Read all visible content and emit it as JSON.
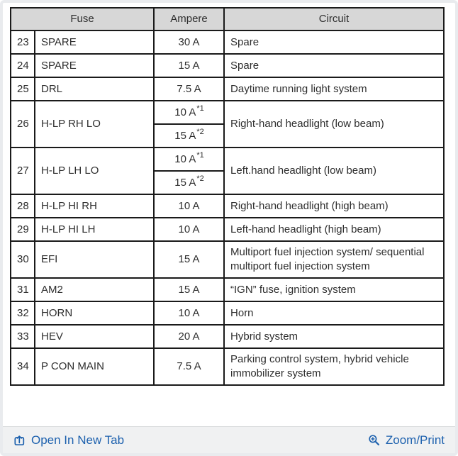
{
  "colors": {
    "link_blue": "#1d61ae",
    "header_bg": "#d7d7d7",
    "table_border": "#1a1a1a",
    "footer_bg": "#f0f1f2"
  },
  "table": {
    "headers": {
      "fuse": "Fuse",
      "ampere": "Ampere",
      "circuit": "Circuit"
    },
    "rows": [
      {
        "num": "23",
        "fuse": "SPARE",
        "ampere": [
          {
            "text": "30 A",
            "sup": ""
          }
        ],
        "circuit": "Spare"
      },
      {
        "num": "24",
        "fuse": "SPARE",
        "ampere": [
          {
            "text": "15 A",
            "sup": ""
          }
        ],
        "circuit": "Spare"
      },
      {
        "num": "25",
        "fuse": "DRL",
        "ampere": [
          {
            "text": "7.5 A",
            "sup": ""
          }
        ],
        "circuit": "Daytime running light system"
      },
      {
        "num": "26",
        "fuse": "H-LP RH LO",
        "ampere": [
          {
            "text": "10 A",
            "sup": "*1"
          },
          {
            "text": "15 A",
            "sup": "*2"
          }
        ],
        "circuit": "Right-hand headlight (low beam)"
      },
      {
        "num": "27",
        "fuse": "H-LP LH LO",
        "ampere": [
          {
            "text": "10 A",
            "sup": "*1"
          },
          {
            "text": "15 A",
            "sup": "*2"
          }
        ],
        "circuit": "Left.hand headlight (low beam)"
      },
      {
        "num": "28",
        "fuse": "H-LP HI RH",
        "ampere": [
          {
            "text": "10 A",
            "sup": ""
          }
        ],
        "circuit": "Right-hand headlight (high beam)"
      },
      {
        "num": "29",
        "fuse": "H-LP HI LH",
        "ampere": [
          {
            "text": "10 A",
            "sup": ""
          }
        ],
        "circuit": "Left-hand headlight (high beam)"
      },
      {
        "num": "30",
        "fuse": "EFI",
        "ampere": [
          {
            "text": "15 A",
            "sup": ""
          }
        ],
        "circuit": "Multiport fuel injection system/ sequential multiport fuel injection system"
      },
      {
        "num": "31",
        "fuse": "AM2",
        "ampere": [
          {
            "text": "15 A",
            "sup": ""
          }
        ],
        "circuit": "“IGN” fuse, ignition system"
      },
      {
        "num": "32",
        "fuse": "HORN",
        "ampere": [
          {
            "text": "10 A",
            "sup": ""
          }
        ],
        "circuit": "Horn"
      },
      {
        "num": "33",
        "fuse": "HEV",
        "ampere": [
          {
            "text": "20 A",
            "sup": ""
          }
        ],
        "circuit": "Hybrid system"
      },
      {
        "num": "34",
        "fuse": "P CON MAIN",
        "ampere": [
          {
            "text": "7.5 A",
            "sup": ""
          }
        ],
        "circuit": "Parking control system, hybrid vehicle immobilizer system"
      }
    ]
  },
  "footer": {
    "open_in_new_tab": {
      "label": "Open In New Tab",
      "icon": "open-in-new-tab-icon"
    },
    "zoom_print": {
      "label": "Zoom/Print",
      "icon": "zoom-plus-icon"
    }
  }
}
